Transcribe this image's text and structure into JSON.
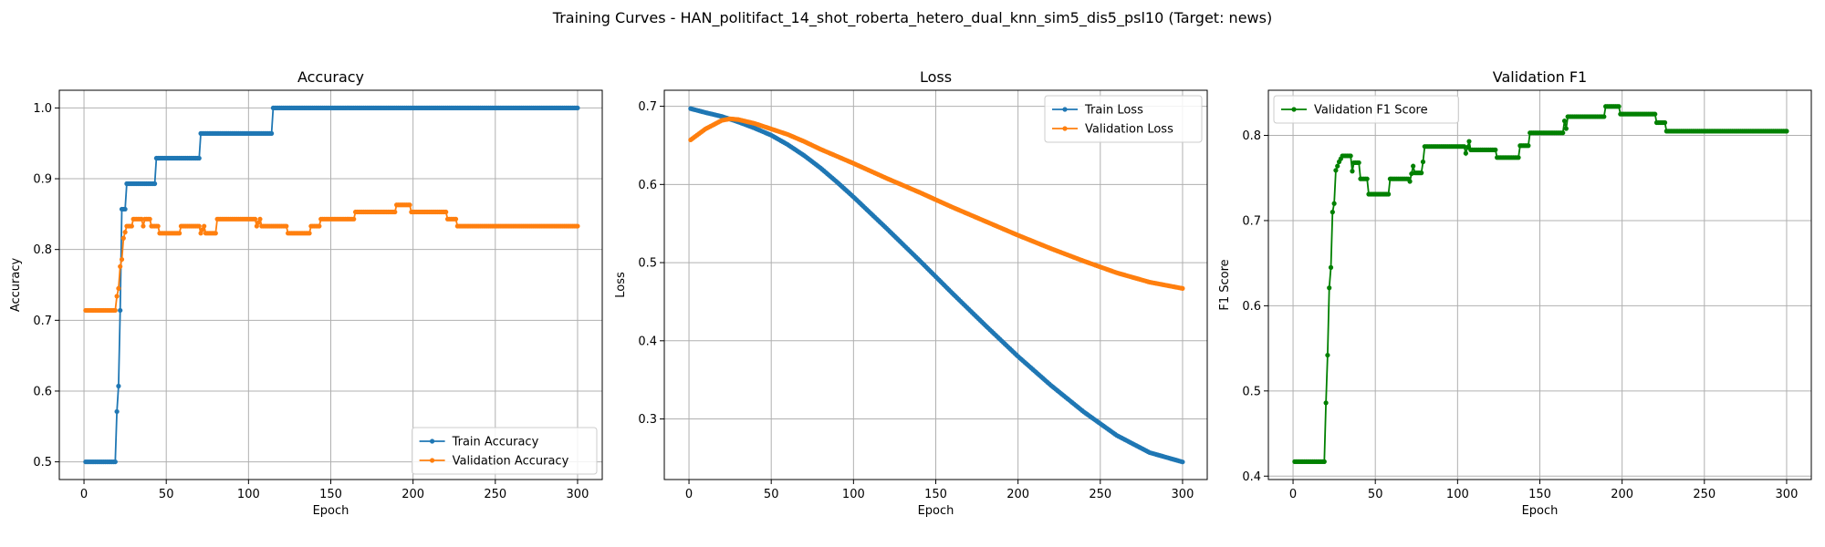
{
  "figure": {
    "suptitle": "Training Curves - HAN_politifact_14_shot_roberta_hetero_dual_knn_sim5_dis5_psl10 (Target: news)"
  },
  "colors": {
    "train": "#1f77b4",
    "validation": "#ff7f0e",
    "f1": "#008000",
    "grid": "#b0b0b0"
  },
  "chart_data": [
    {
      "type": "line",
      "title": "Accuracy",
      "xlabel": "Epoch",
      "ylabel": "Accuracy",
      "xlim": [
        -15,
        315
      ],
      "ylim": [
        0.475,
        1.025
      ],
      "xticks": [
        0,
        50,
        100,
        150,
        200,
        250,
        300
      ],
      "yticks": [
        0.5,
        0.6,
        0.7,
        0.8,
        0.9,
        1.0
      ],
      "grid": true,
      "legend_loc": "lower-right",
      "series": [
        {
          "name": "Train Accuracy",
          "color": "#1f77b4",
          "points": [
            [
              1,
              0.5
            ],
            [
              19,
              0.5
            ],
            [
              20,
              0.571
            ],
            [
              21,
              0.607
            ],
            [
              22,
              0.714
            ],
            [
              23,
              0.857
            ],
            [
              25,
              0.857
            ],
            [
              26,
              0.893
            ],
            [
              43,
              0.893
            ],
            [
              44,
              0.929
            ],
            [
              70,
              0.929
            ],
            [
              71,
              0.964
            ],
            [
              114,
              0.964
            ],
            [
              115,
              1.0
            ],
            [
              300,
              1.0
            ]
          ]
        },
        {
          "name": "Validation Accuracy",
          "color": "#ff7f0e",
          "points": [
            [
              1,
              0.714
            ],
            [
              19,
              0.714
            ],
            [
              20,
              0.734
            ],
            [
              21,
              0.745
            ],
            [
              22,
              0.776
            ],
            [
              23,
              0.786
            ],
            [
              24,
              0.816
            ],
            [
              26,
              0.833
            ],
            [
              29,
              0.833
            ],
            [
              30,
              0.843
            ],
            [
              35,
              0.843
            ],
            [
              36,
              0.833
            ],
            [
              37,
              0.843
            ],
            [
              40,
              0.843
            ],
            [
              41,
              0.833
            ],
            [
              45,
              0.833
            ],
            [
              46,
              0.823
            ],
            [
              58,
              0.823
            ],
            [
              59,
              0.833
            ],
            [
              70,
              0.833
            ],
            [
              71,
              0.823
            ],
            [
              73,
              0.833
            ],
            [
              74,
              0.823
            ],
            [
              80,
              0.823
            ],
            [
              81,
              0.843
            ],
            [
              104,
              0.843
            ],
            [
              105,
              0.833
            ],
            [
              107,
              0.843
            ],
            [
              108,
              0.833
            ],
            [
              123,
              0.833
            ],
            [
              124,
              0.823
            ],
            [
              137,
              0.823
            ],
            [
              138,
              0.833
            ],
            [
              143,
              0.833
            ],
            [
              144,
              0.843
            ],
            [
              164,
              0.843
            ],
            [
              165,
              0.853
            ],
            [
              189,
              0.853
            ],
            [
              190,
              0.863
            ],
            [
              198,
              0.863
            ],
            [
              199,
              0.853
            ],
            [
              220,
              0.853
            ],
            [
              221,
              0.843
            ],
            [
              226,
              0.843
            ],
            [
              227,
              0.833
            ],
            [
              300,
              0.833
            ]
          ]
        }
      ]
    },
    {
      "type": "line",
      "title": "Loss",
      "xlabel": "Epoch",
      "ylabel": "Loss",
      "xlim": [
        -15,
        315
      ],
      "ylim": [
        0.2225,
        0.7205
      ],
      "xticks": [
        0,
        50,
        100,
        150,
        200,
        250,
        300
      ],
      "yticks": [
        0.3,
        0.4,
        0.5,
        0.6,
        0.7
      ],
      "grid": true,
      "legend_loc": "upper-right",
      "series": [
        {
          "name": "Train Loss",
          "color": "#1f77b4",
          "points": [
            [
              1,
              0.697
            ],
            [
              10,
              0.692
            ],
            [
              20,
              0.687
            ],
            [
              30,
              0.68
            ],
            [
              40,
              0.672
            ],
            [
              50,
              0.663
            ],
            [
              60,
              0.651
            ],
            [
              70,
              0.637
            ],
            [
              80,
              0.621
            ],
            [
              90,
              0.603
            ],
            [
              100,
              0.584
            ],
            [
              120,
              0.544
            ],
            [
              140,
              0.503
            ],
            [
              160,
              0.461
            ],
            [
              180,
              0.42
            ],
            [
              200,
              0.38
            ],
            [
              220,
              0.343
            ],
            [
              240,
              0.309
            ],
            [
              260,
              0.279
            ],
            [
              280,
              0.257
            ],
            [
              300,
              0.245
            ]
          ]
        },
        {
          "name": "Validation Loss",
          "color": "#ff7f0e",
          "points": [
            [
              1,
              0.657
            ],
            [
              10,
              0.671
            ],
            [
              20,
              0.682
            ],
            [
              25,
              0.684
            ],
            [
              30,
              0.683
            ],
            [
              40,
              0.678
            ],
            [
              50,
              0.671
            ],
            [
              60,
              0.664
            ],
            [
              70,
              0.655
            ],
            [
              80,
              0.645
            ],
            [
              90,
              0.636
            ],
            [
              100,
              0.627
            ],
            [
              120,
              0.608
            ],
            [
              140,
              0.59
            ],
            [
              160,
              0.571
            ],
            [
              180,
              0.553
            ],
            [
              200,
              0.535
            ],
            [
              220,
              0.518
            ],
            [
              240,
              0.502
            ],
            [
              260,
              0.487
            ],
            [
              280,
              0.475
            ],
            [
              300,
              0.467
            ]
          ]
        }
      ]
    },
    {
      "type": "line",
      "title": "Validation F1",
      "xlabel": "Epoch",
      "ylabel": "F1 Score",
      "xlim": [
        -15,
        315
      ],
      "ylim": [
        0.396,
        0.853
      ],
      "xticks": [
        0,
        50,
        100,
        150,
        200,
        250,
        300
      ],
      "yticks": [
        0.4,
        0.5,
        0.6,
        0.7,
        0.8
      ],
      "grid": true,
      "legend_loc": "upper-left",
      "series": [
        {
          "name": "Validation F1 Score",
          "color": "#008000",
          "points": [
            [
              1,
              0.417
            ],
            [
              19,
              0.417
            ],
            [
              20,
              0.486
            ],
            [
              21,
              0.542
            ],
            [
              22,
              0.621
            ],
            [
              23,
              0.645
            ],
            [
              24,
              0.71
            ],
            [
              25,
              0.72
            ],
            [
              26,
              0.759
            ],
            [
              28,
              0.769
            ],
            [
              30,
              0.776
            ],
            [
              35,
              0.776
            ],
            [
              36,
              0.758
            ],
            [
              37,
              0.768
            ],
            [
              40,
              0.768
            ],
            [
              41,
              0.749
            ],
            [
              45,
              0.749
            ],
            [
              46,
              0.731
            ],
            [
              58,
              0.731
            ],
            [
              59,
              0.749
            ],
            [
              70,
              0.749
            ],
            [
              71,
              0.746
            ],
            [
              73,
              0.764
            ],
            [
              74,
              0.756
            ],
            [
              78,
              0.756
            ],
            [
              79,
              0.769
            ],
            [
              80,
              0.787
            ],
            [
              104,
              0.787
            ],
            [
              105,
              0.779
            ],
            [
              107,
              0.793
            ],
            [
              108,
              0.783
            ],
            [
              123,
              0.783
            ],
            [
              124,
              0.774
            ],
            [
              137,
              0.774
            ],
            [
              138,
              0.788
            ],
            [
              143,
              0.788
            ],
            [
              144,
              0.803
            ],
            [
              164,
              0.803
            ],
            [
              165,
              0.817
            ],
            [
              166,
              0.808
            ],
            [
              167,
              0.822
            ],
            [
              189,
              0.822
            ],
            [
              190,
              0.834
            ],
            [
              198,
              0.834
            ],
            [
              199,
              0.825
            ],
            [
              220,
              0.825
            ],
            [
              221,
              0.815
            ],
            [
              226,
              0.815
            ],
            [
              227,
              0.805
            ],
            [
              300,
              0.805
            ]
          ]
        }
      ]
    }
  ]
}
